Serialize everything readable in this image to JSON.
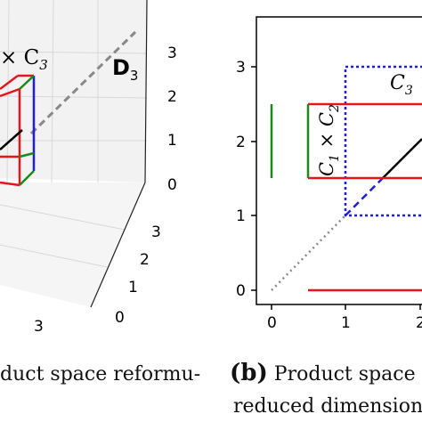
{
  "panel_a": {
    "label_product": "× C",
    "label_product_sub": "3",
    "label_d": "D",
    "label_d_sub": "3",
    "z_ticks": [
      "3",
      "2",
      "1",
      "0"
    ],
    "y_ticks": [
      "3",
      "2",
      "1",
      "0"
    ],
    "x_ticks": [
      "3"
    ],
    "caption": "duct space reformu-"
  },
  "panel_b": {
    "x_ticks": [
      "0",
      "1",
      "2"
    ],
    "y_ticks": [
      "3",
      "2",
      "1",
      "0"
    ],
    "label_c3": "C",
    "label_c3_sub": "3",
    "label_c3_tail": " ×",
    "label_c1c2_c1": "C",
    "label_c1c2_sub1": "1",
    "label_c1c2_times": " × ",
    "label_c1c2_c2": "C",
    "label_c1c2_sub2": "2",
    "caption_tag": "(b)",
    "caption_line1": " Product space r",
    "caption_line2": "reduced dimension"
  },
  "colors": {
    "red": "#e8141c",
    "green": "#1a8a1a",
    "blue": "#1f1fd8",
    "grey": "#888888",
    "black": "#000000"
  }
}
